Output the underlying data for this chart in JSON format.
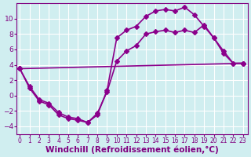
{
  "bg_color": "#d0eef0",
  "grid_color": "#ffffff",
  "line_color": "#8B008B",
  "marker": "D",
  "markersize": 3,
  "linewidth": 1.2,
  "xlabel": "Windchill (Refroidissement éolien,°C)",
  "xlabel_fontsize": 7.5,
  "xticks": [
    0,
    1,
    2,
    3,
    4,
    5,
    6,
    7,
    8,
    9,
    10,
    11,
    12,
    13,
    14,
    15,
    16,
    17,
    18,
    19,
    20,
    21,
    22,
    23
  ],
  "yticks": [
    -4,
    -2,
    0,
    2,
    4,
    6,
    8,
    10
  ],
  "xlim": [
    -0.3,
    23.5
  ],
  "ylim": [
    -5,
    12
  ],
  "line1_x": [
    0,
    1,
    2,
    3,
    4,
    5,
    6,
    7,
    8,
    9,
    10,
    11,
    12,
    13,
    14,
    15,
    16,
    17,
    18,
    19,
    20,
    21,
    22,
    23
  ],
  "line1_y": [
    3.5,
    1.0,
    -0.7,
    -1.2,
    -2.5,
    -3.0,
    -3.2,
    -3.5,
    -2.5,
    0.7,
    7.5,
    8.5,
    9.0,
    10.3,
    11.0,
    11.2,
    11.0,
    11.5,
    10.5,
    9.0,
    7.5,
    5.5,
    4.2,
    4.2
  ],
  "line2_x": [
    0,
    1,
    2,
    3,
    4,
    5,
    6,
    7,
    8,
    9,
    10,
    11,
    12,
    13,
    14,
    15,
    16,
    17,
    18,
    19,
    20,
    21,
    22,
    23
  ],
  "line2_y": [
    3.5,
    1.2,
    -0.5,
    -1.0,
    -2.2,
    -2.8,
    -3.0,
    -3.5,
    -2.3,
    0.5,
    4.5,
    5.8,
    6.5,
    8.0,
    8.3,
    8.5,
    8.2,
    8.5,
    8.2,
    9.2,
    7.5,
    5.8,
    4.2,
    4.2
  ],
  "line3_x": [
    0,
    23
  ],
  "line3_y": [
    3.5,
    4.2
  ],
  "tick_fontsize": 6.5,
  "tick_color": "#800080"
}
